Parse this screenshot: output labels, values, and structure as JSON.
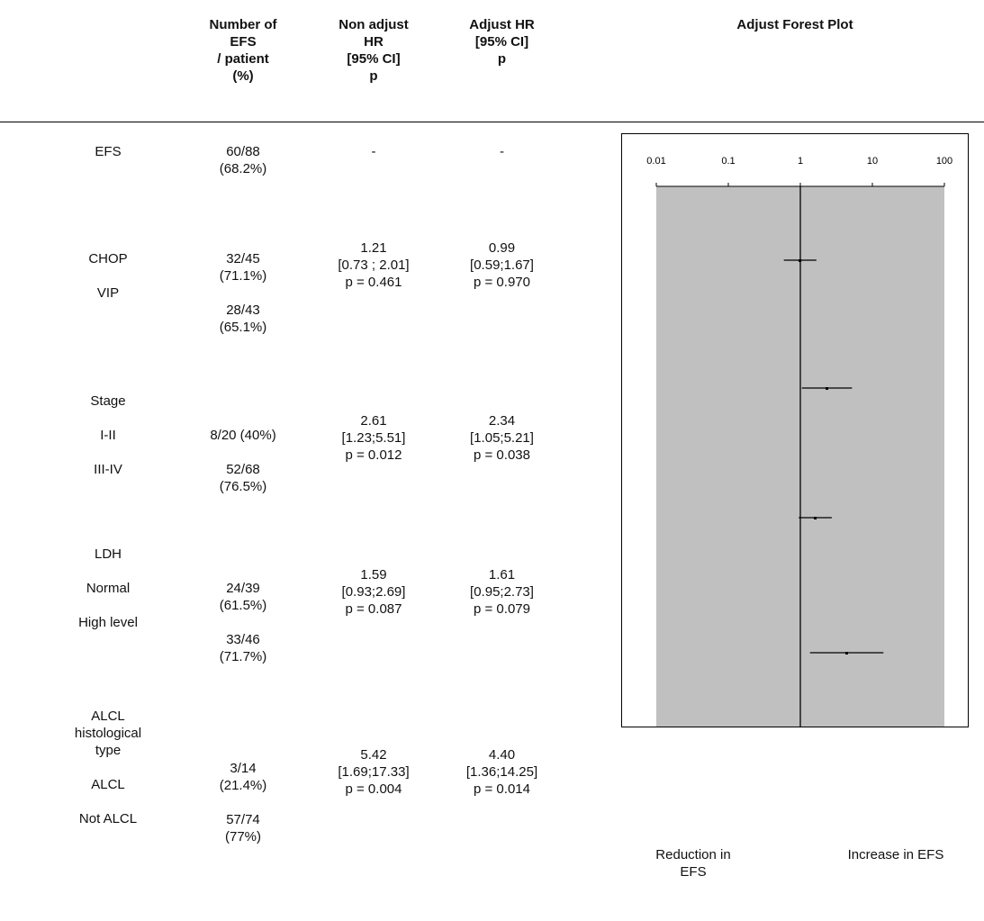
{
  "headers": {
    "number": "Number of\nEFS\n/ patient\n(%)",
    "non_adjust": "Non adjust\nHR\n[95% CI]\np",
    "adjust": "Adjust HR\n[95% CI]\np",
    "plot": "Adjust Forest Plot"
  },
  "rows": [
    {
      "label": "EFS",
      "number": "60/88\n(68.2%)",
      "non_adjust": "-",
      "adjust": "-"
    },
    {
      "label": "CHOP\n\nVIP",
      "number": "32/45\n(71.1%)\n\n28/43\n(65.1%)",
      "non_adjust": "1.21\n[0.73 ; 2.01]\np = 0.461",
      "adjust": "0.99\n[0.59;1.67]\np = 0.970"
    },
    {
      "label": "Stage\n\nI-II\n\nIII-IV",
      "number": "8/20 (40%)\n\n52/68\n(76.5%)",
      "non_adjust": "2.61\n[1.23;5.51]\np = 0.012",
      "adjust": "2.34\n[1.05;5.21]\np = 0.038"
    },
    {
      "label": "LDH\n\nNormal\n\nHigh level",
      "number": "24/39\n(61.5%)\n\n33/46\n(71.7%)",
      "non_adjust": "1.59\n[0.93;2.69]\np = 0.087",
      "adjust": "1.61\n[0.95;2.73]\np = 0.079"
    },
    {
      "label": "ALCL\nhistological\ntype\n\nALCL\n\nNot ALCL",
      "number": "3/14\n(21.4%)\n\n57/74\n(77%)",
      "non_adjust": "5.42\n[1.69;17.33]\np = 0.004",
      "adjust": "4.40\n[1.36;14.25]\np = 0.014"
    }
  ],
  "legend": {
    "left": "Reduction in\nEFS",
    "right": "Increase in EFS"
  },
  "chart_data": {
    "type": "forest",
    "title": "Adjust Forest Plot",
    "x_scale": "log",
    "xlim": [
      0.01,
      100
    ],
    "x_ticks": [
      "0.01",
      "0.1",
      "1",
      "10",
      "100"
    ],
    "x_tick_values": [
      0.01,
      0.1,
      1,
      10,
      100
    ],
    "reference_line": 1,
    "background_color": "#c0c0c0",
    "entries": [
      {
        "variable": "CHOP vs VIP",
        "hr": 0.99,
        "ci": [
          0.59,
          1.67
        ]
      },
      {
        "variable": "Stage",
        "hr": 2.34,
        "ci": [
          1.05,
          5.21
        ]
      },
      {
        "variable": "LDH",
        "hr": 1.61,
        "ci": [
          0.95,
          2.73
        ]
      },
      {
        "variable": "ALCL histological type",
        "hr": 4.4,
        "ci": [
          1.36,
          14.25
        ]
      }
    ]
  }
}
